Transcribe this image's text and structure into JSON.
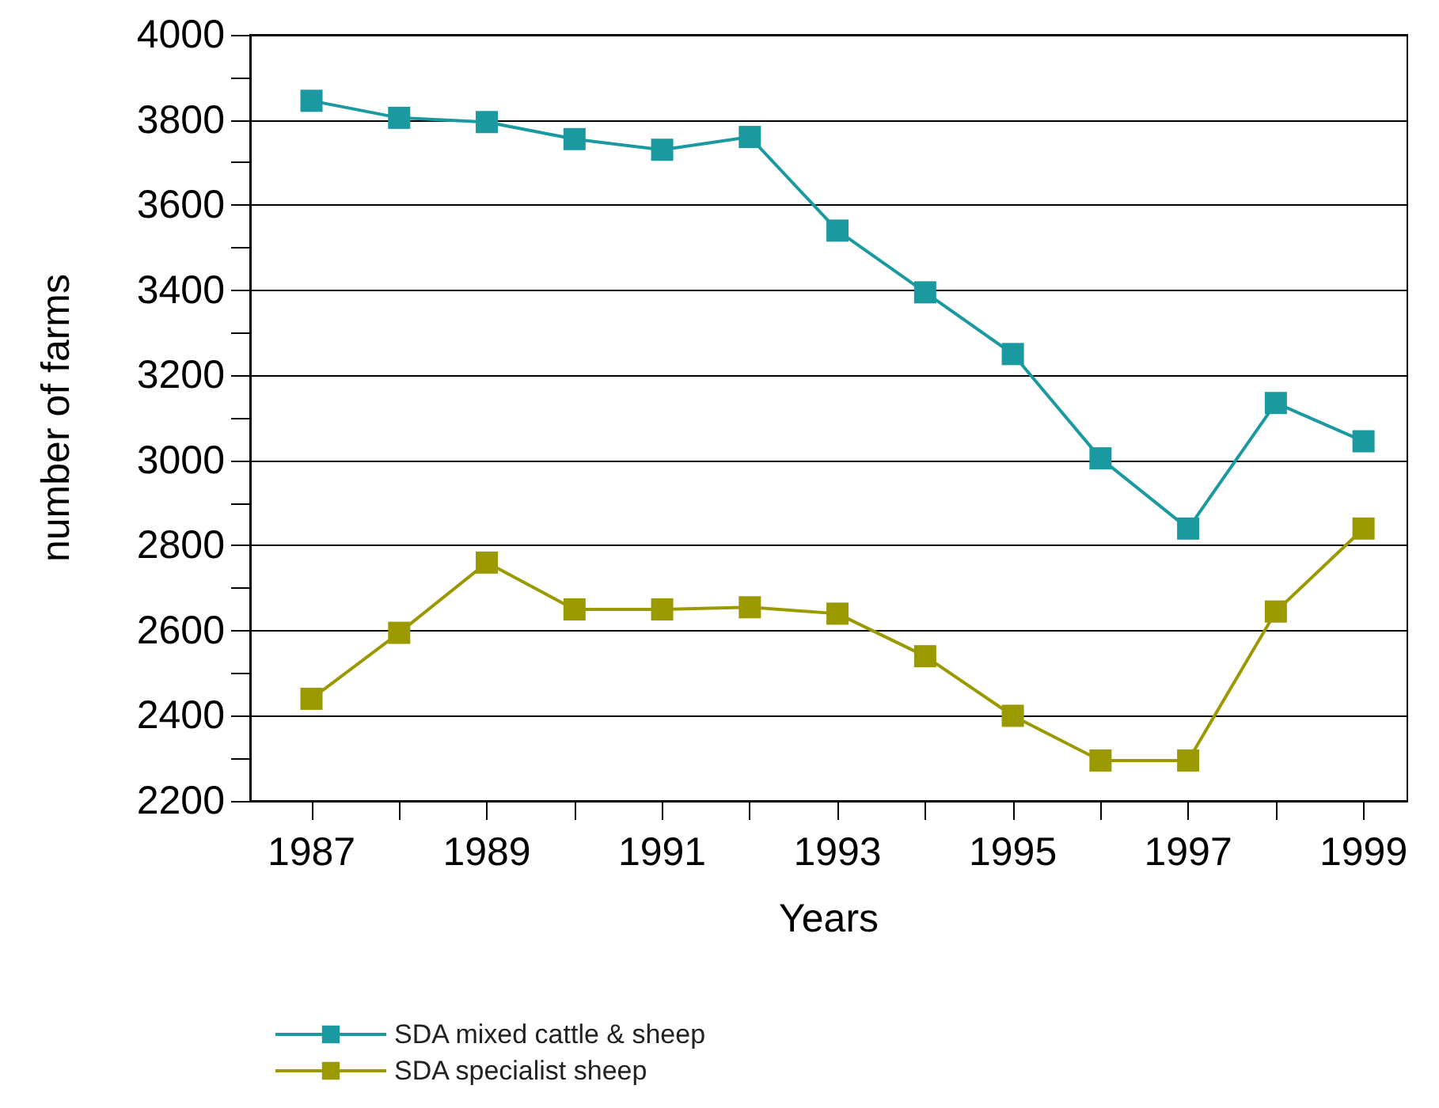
{
  "chart_data": {
    "type": "line",
    "xlabel": "Years",
    "ylabel": "number of farms",
    "x": [
      1987,
      1988,
      1989,
      1990,
      1991,
      1992,
      1993,
      1994,
      1995,
      1996,
      1997,
      1998,
      1999
    ],
    "series": [
      {
        "name": "SDA mixed cattle & sheep",
        "color": "#1a9aa0",
        "values": [
          3845,
          3805,
          3795,
          3755,
          3730,
          3760,
          3540,
          3395,
          3250,
          3005,
          2840,
          3135,
          3045
        ]
      },
      {
        "name": "SDA specialist sheep",
        "color": "#9a9a00",
        "values": [
          2440,
          2595,
          2760,
          2650,
          2650,
          2655,
          2640,
          2540,
          2400,
          2295,
          2295,
          2645,
          2840
        ]
      }
    ],
    "xlim": [
      1986.3,
      1999.5
    ],
    "xticks": [
      1987,
      {
        "value": 1988,
        "label": null
      },
      1989,
      {
        "value": 1990,
        "label": null
      },
      1991,
      {
        "value": 1992,
        "label": null
      },
      1993,
      {
        "value": 1994,
        "label": null
      },
      1995,
      {
        "value": 1996,
        "label": null
      },
      1997,
      {
        "value": 1998,
        "label": null
      },
      1999
    ],
    "ylim": [
      2200,
      4000
    ],
    "yticks": [
      2200,
      {
        "value": 2300,
        "label": null
      },
      2400,
      {
        "value": 2500,
        "label": null
      },
      2600,
      {
        "value": 2700,
        "label": null
      },
      2800,
      {
        "value": 2900,
        "label": null
      },
      3000,
      {
        "value": 3100,
        "label": null
      },
      3200,
      {
        "value": 3300,
        "label": null
      },
      3400,
      {
        "value": 3500,
        "label": null
      },
      3600,
      {
        "value": 3700,
        "label": null
      },
      3800,
      {
        "value": 3900,
        "label": null
      },
      4000
    ],
    "grid": "y",
    "legend": "bottom left",
    "marker": "square",
    "line_style": "solid"
  }
}
